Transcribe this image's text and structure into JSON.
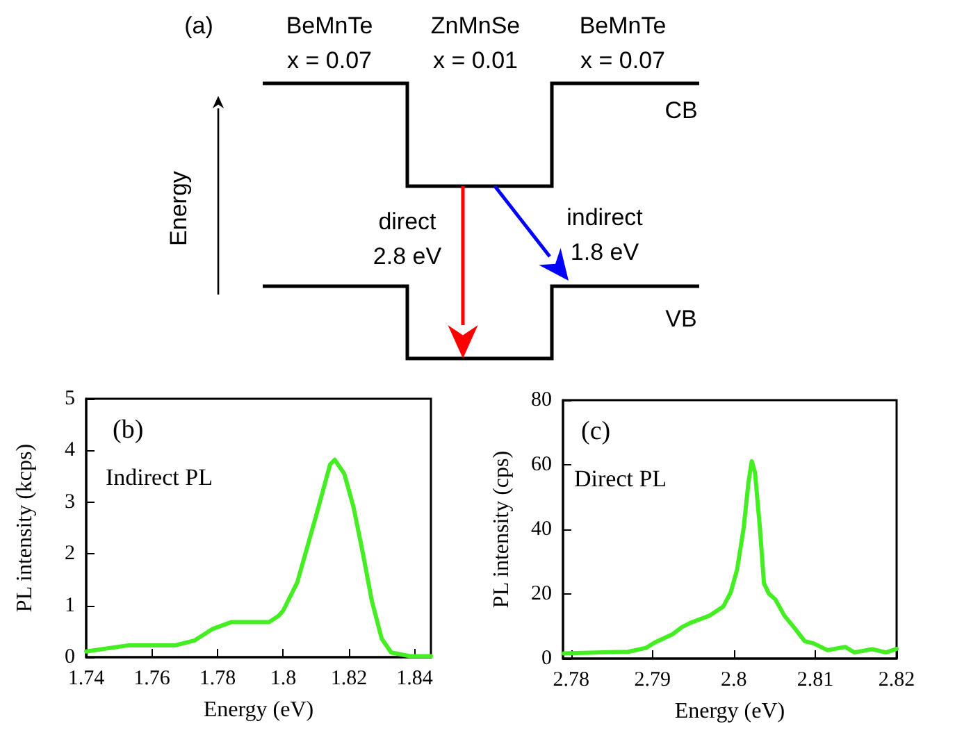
{
  "chart_data": [
    {
      "type": "other",
      "title": "(a)",
      "ylabel": "Energy",
      "annotations": [
        "BeMnTe",
        "x = 0.07",
        "ZnMnSe",
        "x = 0.01",
        "BeMnTe",
        "x = 0.07",
        "CB",
        "VB",
        "direct",
        "2.8 eV",
        "indirect",
        "1.8 eV"
      ]
    },
    {
      "type": "line",
      "title": "(b)",
      "annotations": [
        "Indirect PL"
      ],
      "xlabel": "Energy (eV)",
      "ylabel": "PL intensity (kcps)",
      "x": [
        1.74,
        1.7529,
        1.7671,
        1.7729,
        1.7786,
        1.7843,
        1.79,
        1.7957,
        1.7986,
        1.8,
        1.8043,
        1.81,
        1.8143,
        1.8157,
        1.8186,
        1.8214,
        1.8243,
        1.827,
        1.83,
        1.8329,
        1.8386,
        1.845
      ],
      "series": [
        {
          "color": "#44ee22",
          "values": [
            0.11,
            0.23,
            0.23,
            0.32,
            0.55,
            0.68,
            0.68,
            0.68,
            0.8,
            0.9,
            1.45,
            2.73,
            3.73,
            3.82,
            3.55,
            2.91,
            2.0,
            1.09,
            0.36,
            0.09,
            0.02,
            0.02
          ]
        }
      ],
      "xlim": [
        1.74,
        1.845
      ],
      "ylim": [
        0,
        5
      ],
      "xticks": [
        1.74,
        1.76,
        1.78,
        1.8,
        1.82,
        1.84
      ],
      "yticks": [
        0,
        1,
        2,
        3,
        4,
        5
      ],
      "grid": false
    },
    {
      "type": "line",
      "title": "(c)",
      "annotations": [
        "Direct PL"
      ],
      "xlabel": "Energy (eV)",
      "ylabel": "PL intensity (cps)",
      "x": [
        2.7791,
        2.7831,
        2.787,
        2.7892,
        2.7903,
        2.7925,
        2.7936,
        2.7947,
        2.797,
        2.7987,
        2.7996,
        2.8004,
        2.8012,
        2.8018,
        2.8022,
        2.8026,
        2.8032,
        2.8037,
        2.8043,
        2.8051,
        2.8062,
        2.8076,
        2.8087,
        2.8098,
        2.8115,
        2.8137,
        2.8148,
        2.817,
        2.8187,
        2.82
      ],
      "series": [
        {
          "color": "#44ee22",
          "values": [
            1.6,
            1.9,
            2.1,
            3.3,
            5,
            7.6,
            9.7,
            11.1,
            13.3,
            16.1,
            20.4,
            27.6,
            40.4,
            54.7,
            61.1,
            57.6,
            40.4,
            23.3,
            20.1,
            18.3,
            13.3,
            9,
            5.4,
            4.7,
            2.6,
            3.6,
            1.9,
            2.9,
            1.9,
            3
          ]
        }
      ],
      "xlim": [
        2.779,
        2.82
      ],
      "ylim": [
        0,
        80
      ],
      "xticks": [
        2.78,
        2.79,
        2.8,
        2.81,
        2.82
      ],
      "yticks": [
        0,
        20,
        40,
        60,
        80
      ],
      "grid": false
    }
  ]
}
